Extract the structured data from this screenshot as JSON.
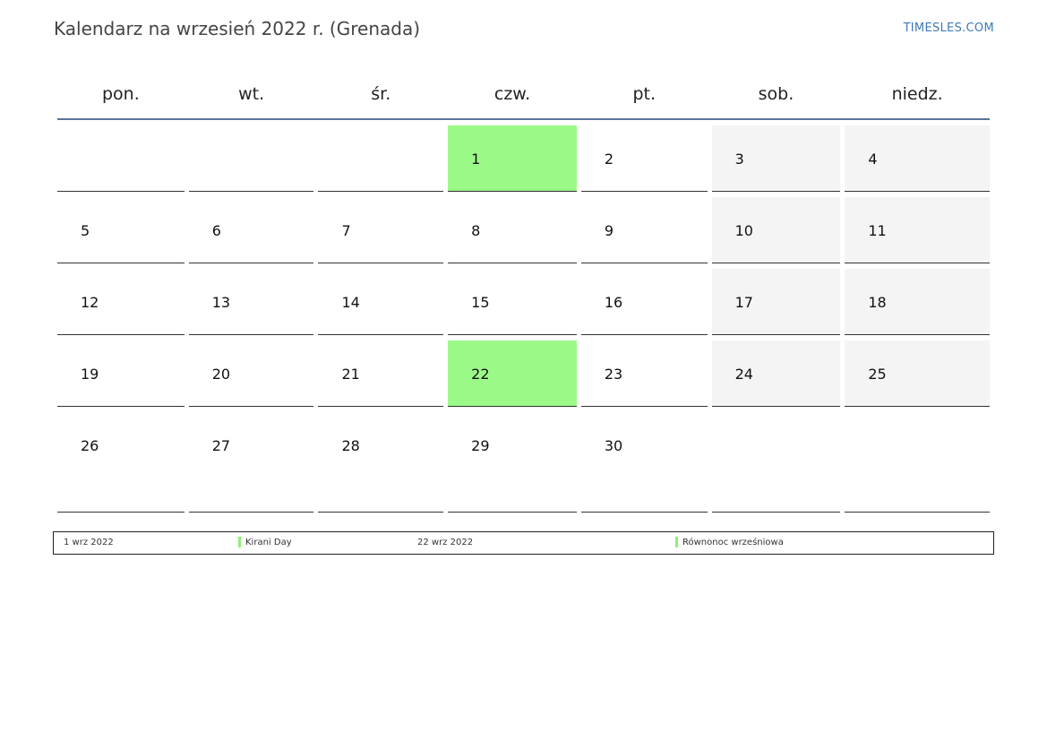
{
  "header": {
    "title": "Kalendarz na wrzesień 2022 r. (Grenada)",
    "brand": "TIMESLES.COM"
  },
  "calendar": {
    "weekdays": [
      "pon.",
      "wt.",
      "śr.",
      "czw.",
      "pt.",
      "sob.",
      "niedz."
    ],
    "weeks": [
      [
        "",
        "",
        "",
        "1",
        "2",
        "3",
        "4"
      ],
      [
        "5",
        "6",
        "7",
        "8",
        "9",
        "10",
        "11"
      ],
      [
        "12",
        "13",
        "14",
        "15",
        "16",
        "17",
        "18"
      ],
      [
        "19",
        "20",
        "21",
        "22",
        "23",
        "24",
        "25"
      ],
      [
        "26",
        "27",
        "28",
        "29",
        "30",
        "",
        ""
      ]
    ],
    "holiday_days": [
      "1",
      "22"
    ],
    "colors": {
      "holiday": "#9bfa87",
      "weekend": "#f4f4f4",
      "header_rule": "#5a7598"
    }
  },
  "legend": {
    "items": [
      {
        "date": "1 wrz 2022",
        "name": "Kirani Day"
      },
      {
        "date": "22 wrz 2022",
        "name": "Równonoc wrześniowa"
      }
    ]
  }
}
